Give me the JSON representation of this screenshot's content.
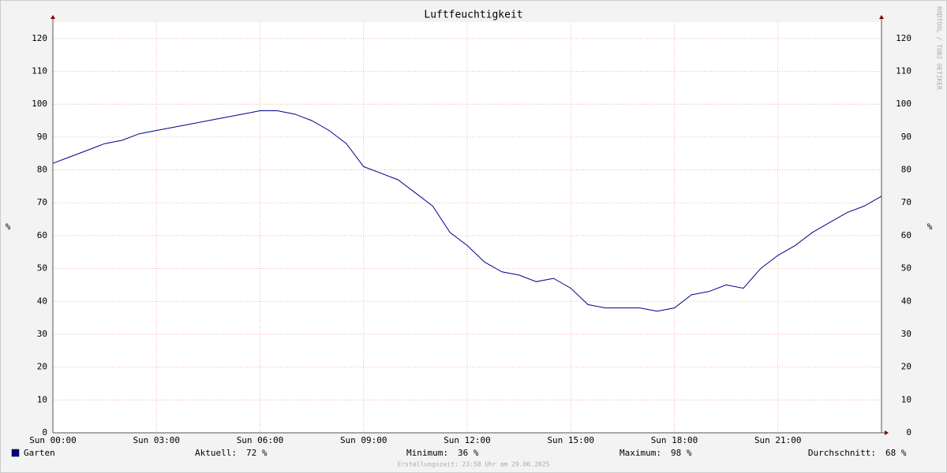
{
  "chart_data": {
    "type": "line",
    "title": "Luftfeuchtigkeit",
    "y_label": "%",
    "y2_label": "%",
    "watermark": "RRDTOOL / TOBI OETIKER",
    "x": [
      0,
      0.5,
      1,
      1.5,
      2,
      2.5,
      3,
      3.5,
      4,
      4.5,
      5,
      5.5,
      6,
      6.5,
      7,
      7.5,
      8,
      8.5,
      9,
      9.5,
      10,
      10.5,
      11,
      11.5,
      12,
      12.5,
      13,
      13.5,
      14,
      14.5,
      15,
      15.5,
      16,
      16.5,
      17,
      17.5,
      18,
      18.5,
      19,
      19.5,
      20,
      20.5,
      21,
      21.5,
      22,
      22.5,
      23,
      23.5,
      24
    ],
    "series": [
      {
        "name": "Garten",
        "color": "#00008b",
        "values": [
          82,
          84,
          86,
          88,
          89,
          91,
          92,
          93,
          94,
          95,
          96,
          97,
          98,
          98,
          97,
          95,
          92,
          88,
          81,
          79,
          77,
          73,
          69,
          61,
          57,
          52,
          49,
          48,
          46,
          47,
          44,
          39,
          38,
          38,
          38,
          37,
          38,
          42,
          43,
          45,
          44,
          50,
          54,
          57,
          61,
          64,
          67,
          69,
          72
        ]
      }
    ],
    "xlim": [
      0,
      24
    ],
    "xticks": [
      {
        "value": 0,
        "label": "Sun 00:00"
      },
      {
        "value": 3,
        "label": "Sun 03:00"
      },
      {
        "value": 6,
        "label": "Sun 06:00"
      },
      {
        "value": 9,
        "label": "Sun 09:00"
      },
      {
        "value": 12,
        "label": "Sun 12:00"
      },
      {
        "value": 15,
        "label": "Sun 15:00"
      },
      {
        "value": 18,
        "label": "Sun 18:00"
      },
      {
        "value": 21,
        "label": "Sun 21:00"
      }
    ],
    "ylim": [
      0,
      125
    ],
    "yticks": [
      0,
      10,
      20,
      30,
      40,
      50,
      60,
      70,
      80,
      90,
      100,
      110,
      120
    ],
    "grid": true,
    "stats": [
      {
        "label": "Aktuell:",
        "value": 72,
        "value_label": "72 %"
      },
      {
        "label": "Minimum:",
        "value": 36,
        "value_label": "36 %"
      },
      {
        "label": "Maximum:",
        "value": 98,
        "value_label": "98 %"
      },
      {
        "label": "Durchschnitt:",
        "value": 68,
        "value_label": "68 %"
      }
    ],
    "footer": "Erstellungszeit: 23:58 Uhr am 29.06.2025"
  }
}
